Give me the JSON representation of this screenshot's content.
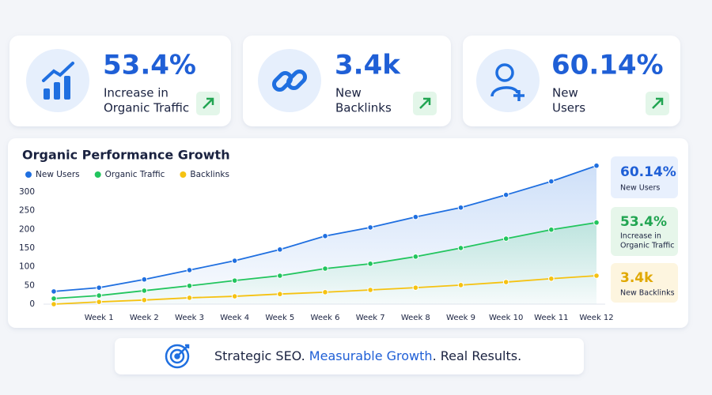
{
  "cards": [
    {
      "value": "53.4%",
      "label": [
        "Increase in",
        "Organic Traffic"
      ]
    },
    {
      "value": "3.4k",
      "label": [
        "New",
        "Backlinks"
      ]
    },
    {
      "value": "60.14%",
      "label": [
        "New",
        "Users"
      ]
    }
  ],
  "chart_data": {
    "type": "line",
    "title": "Organic Performance Growth",
    "categories": [
      null,
      "Week 1",
      "Week 2",
      "Week 3",
      "Week 4",
      "Week 5",
      "Week 6",
      "Week 7",
      "Week 8",
      "Week 9",
      "Week 10",
      "Week 11",
      "Week 12"
    ],
    "series": [
      {
        "name": "New Users",
        "color": "#1f6fe0",
        "values": [
          34,
          44,
          66,
          91,
          116,
          146,
          182,
          205,
          233,
          258,
          292,
          328,
          370
        ]
      },
      {
        "name": "Organic Traffic",
        "color": "#22c55e",
        "values": [
          15,
          23,
          36,
          49,
          63,
          76,
          95,
          108,
          127,
          150,
          175,
          199,
          218
        ]
      },
      {
        "name": "Backlinks",
        "color": "#f5c211",
        "values": [
          0,
          6,
          11,
          17,
          21,
          27,
          32,
          38,
          44,
          51,
          59,
          68,
          76
        ]
      }
    ],
    "ylim": [
      0,
      380
    ],
    "yticks": [
      0,
      50,
      100,
      150,
      200,
      250,
      300
    ],
    "grid": false,
    "legend": "top-left"
  },
  "side_stats": [
    {
      "value": "60.14%",
      "label": [
        "New Users"
      ]
    },
    {
      "value": "53.4%",
      "label": [
        "Increase in",
        "Organic Traffic"
      ]
    },
    {
      "value": "3.4k",
      "label": [
        "New Backlinks"
      ]
    }
  ],
  "tagline": [
    "Strategic SEO. ",
    "Measurable Growth",
    ". Real Results."
  ]
}
